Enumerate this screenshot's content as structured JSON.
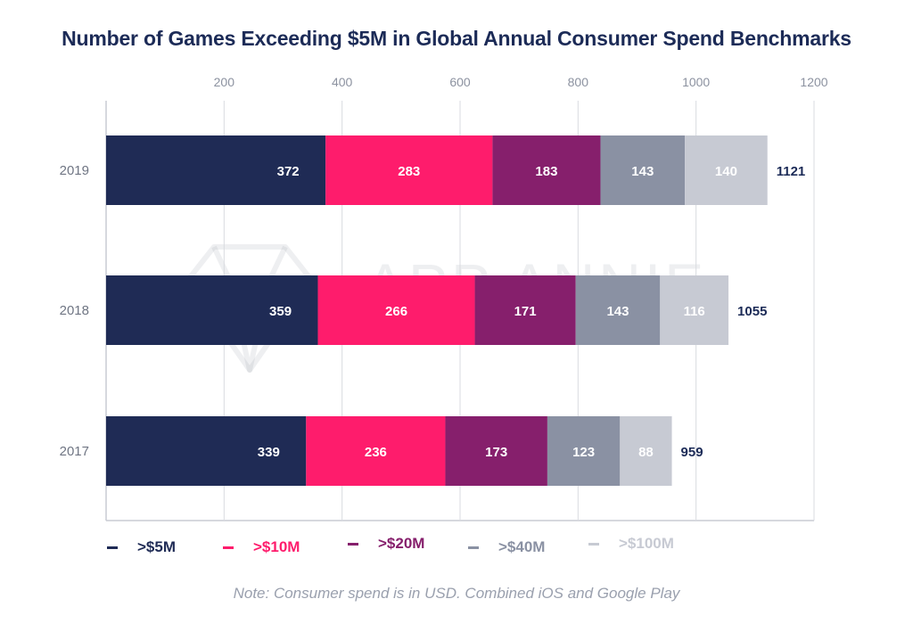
{
  "chart_data": {
    "type": "bar",
    "orientation": "horizontal",
    "stacked": true,
    "title": "Number of Games Exceeding $5M in Global Annual Consumer Spend Benchmarks",
    "categories": [
      "2019",
      "2018",
      "2017"
    ],
    "series": [
      {
        "name": ">$5M",
        "color": "#1f2b55",
        "values": [
          372,
          359,
          339
        ]
      },
      {
        "name": ">$10M",
        "color": "#fe1c6c",
        "values": [
          283,
          266,
          236
        ]
      },
      {
        "name": ">$20M",
        "color": "#861f6c",
        "values": [
          183,
          171,
          173
        ]
      },
      {
        "name": ">$40M",
        "color": "#8a91a3",
        "values": [
          143,
          143,
          123
        ]
      },
      {
        "name": ">$100M",
        "color": "#c7cad3",
        "values": [
          140,
          116,
          88
        ]
      }
    ],
    "totals": [
      "1121",
      "1055",
      "959"
    ],
    "x_ticks": [
      "200",
      "400",
      "600",
      "800",
      "1000",
      "1200"
    ],
    "xlim": [
      0,
      1200
    ],
    "axis_position": "top",
    "grid": true,
    "legend_position": "bottom",
    "note": "Note: Consumer spend is in USD. Combined iOS and Google Play",
    "watermark": "APP ANNIE"
  }
}
